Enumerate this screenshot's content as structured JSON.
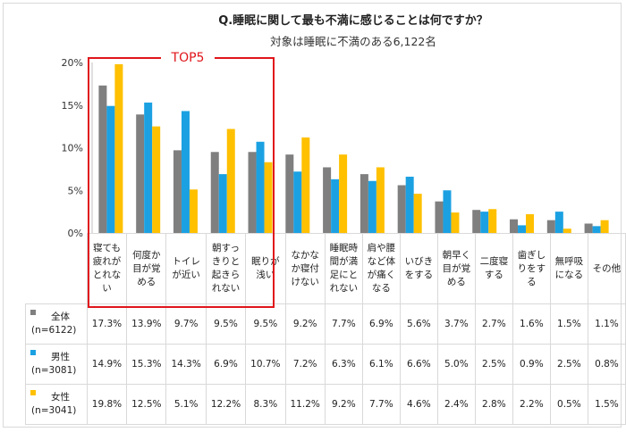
{
  "chart_data": {
    "type": "bar",
    "title": "Q.睡眠に関して最も不満に感じることは何ですか？",
    "subtitle": "対象は睡眠に不満のある6,122名",
    "annotation": "TOP5",
    "yticks": [
      "0%",
      "5%",
      "10%",
      "15%",
      "20%"
    ],
    "ylim": [
      0,
      20
    ],
    "grid": false,
    "categories": [
      "寝ても疲れがとれない",
      "何度か目が覚める",
      "トイレが近い",
      "朝すっきりと起きられない",
      "眠りが浅い",
      "なかなか寝付けない",
      "睡眠時間が満足にとれない",
      "肩や腰など体が痛くなる",
      "いびきをする",
      "朝早く目が覚める",
      "二度寝する",
      "歯ぎしりをする",
      "無呼吸になる",
      "その他"
    ],
    "series": [
      {
        "name": "全体",
        "n": "(n=6122)",
        "color": "#7f7f7f",
        "values": [
          17.3,
          13.9,
          9.7,
          9.5,
          9.5,
          9.2,
          7.7,
          6.9,
          5.6,
          3.7,
          2.7,
          1.6,
          1.5,
          1.1
        ],
        "labels": [
          "17.3%",
          "13.9%",
          "9.7%",
          "9.5%",
          "9.5%",
          "9.2%",
          "7.7%",
          "6.9%",
          "5.6%",
          "3.7%",
          "2.7%",
          "1.6%",
          "1.5%",
          "1.1%"
        ]
      },
      {
        "name": "男性",
        "n": "(n=3081)",
        "color": "#1ba1e2",
        "values": [
          14.9,
          15.3,
          14.3,
          6.9,
          10.7,
          7.2,
          6.3,
          6.1,
          6.6,
          5.0,
          2.5,
          0.9,
          2.5,
          0.8
        ],
        "labels": [
          "14.9%",
          "15.3%",
          "14.3%",
          "6.9%",
          "10.7%",
          "7.2%",
          "6.3%",
          "6.1%",
          "6.6%",
          "5.0%",
          "2.5%",
          "0.9%",
          "2.5%",
          "0.8%"
        ]
      },
      {
        "name": "女性",
        "n": "(n=3041)",
        "color": "#ffc000",
        "values": [
          19.8,
          12.5,
          5.1,
          12.2,
          8.3,
          11.2,
          9.2,
          7.7,
          4.6,
          2.4,
          2.8,
          2.2,
          0.5,
          1.5
        ],
        "labels": [
          "19.8%",
          "12.5%",
          "5.1%",
          "12.2%",
          "8.3%",
          "11.2%",
          "9.2%",
          "7.7%",
          "4.6%",
          "2.4%",
          "2.8%",
          "2.2%",
          "0.5%",
          "1.5%"
        ]
      }
    ]
  }
}
